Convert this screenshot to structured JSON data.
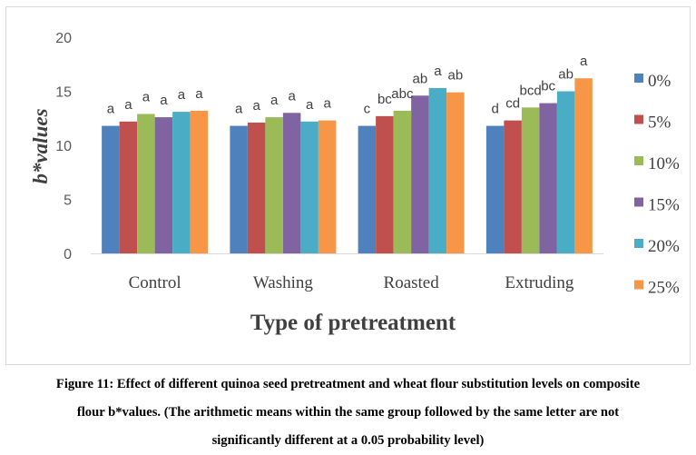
{
  "chart_data": {
    "type": "bar",
    "xlabel": "Type of pretreatment",
    "ylabel": "b*values",
    "ylim": [
      0,
      20
    ],
    "yticks": [
      0,
      5,
      10,
      15,
      20
    ],
    "grid": false,
    "legend_position": "right",
    "categories": [
      "Control",
      "Washing",
      "Roasted",
      "Extruding"
    ],
    "series": [
      {
        "name": "0%",
        "color": "#4f81bd",
        "values": [
          11.8,
          11.8,
          11.8,
          11.8
        ],
        "letters": [
          "a",
          "a",
          "c",
          "d"
        ]
      },
      {
        "name": "5%",
        "color": "#c0504d",
        "values": [
          12.2,
          12.1,
          12.7,
          12.3
        ],
        "letters": [
          "a",
          "a",
          "bc",
          "cd"
        ]
      },
      {
        "name": "10%",
        "color": "#9bbb59",
        "values": [
          12.9,
          12.6,
          13.2,
          13.5
        ],
        "letters": [
          "a",
          "a",
          "abc",
          "bcd"
        ]
      },
      {
        "name": "15%",
        "color": "#8064a2",
        "values": [
          12.6,
          13.0,
          14.6,
          13.9
        ],
        "letters": [
          "a",
          "a",
          "ab",
          "bc"
        ]
      },
      {
        "name": "20%",
        "color": "#4bacc6",
        "values": [
          13.1,
          12.2,
          15.3,
          15.0
        ],
        "letters": [
          "a",
          "a",
          "a",
          "ab"
        ]
      },
      {
        "name": "25%",
        "color": "#f79646",
        "values": [
          13.2,
          12.3,
          14.9,
          16.2
        ],
        "letters": [
          "a",
          "a",
          "ab",
          "a"
        ]
      }
    ]
  },
  "caption": {
    "line1": "Figure 11: Effect of different quinoa seed pretreatment and wheat flour substitution levels on composite",
    "line2": "flour b*values. (The arithmetic means within the same group followed by the same letter are not",
    "line3": "significantly different at a 0.05 probability level)"
  }
}
